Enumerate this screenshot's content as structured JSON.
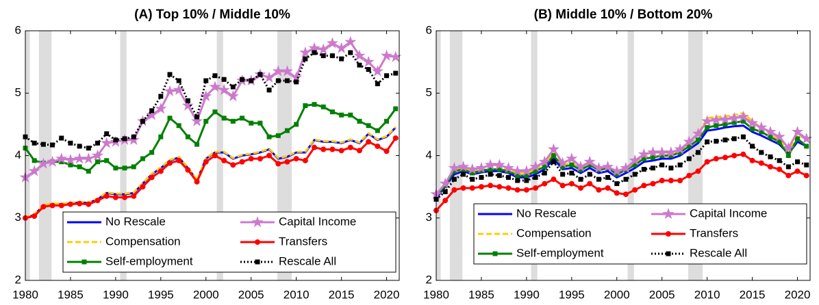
{
  "chart_data": [
    {
      "type": "line",
      "title": "(A) Top 10% / Middle 10%",
      "x": [
        1980,
        1981,
        1982,
        1983,
        1984,
        1985,
        1986,
        1987,
        1988,
        1989,
        1990,
        1991,
        1992,
        1993,
        1994,
        1995,
        1996,
        1997,
        1998,
        1999,
        2000,
        2001,
        2002,
        2003,
        2004,
        2005,
        2006,
        2007,
        2008,
        2009,
        2010,
        2011,
        2012,
        2013,
        2014,
        2015,
        2016,
        2017,
        2018,
        2019,
        2020,
        2021
      ],
      "xlim": [
        1980,
        2021.4
      ],
      "xticks": [
        1980,
        1985,
        1990,
        1995,
        2000,
        2005,
        2010,
        2015,
        2020
      ],
      "ylim": [
        2,
        6
      ],
      "yticks": [
        2,
        3,
        4,
        5,
        6
      ],
      "shaded": [
        [
          1980,
          1980.5
        ],
        [
          1981.5,
          1982.9
        ],
        [
          1990.5,
          1991.2
        ],
        [
          2001.2,
          2001.9
        ],
        [
          2007.9,
          2009.5
        ]
      ],
      "series": [
        {
          "name": "No Rescale",
          "color": "#0000ff",
          "style": "solid",
          "marker": "none",
          "values": [
            3.0,
            3.05,
            3.2,
            3.22,
            3.22,
            3.23,
            3.25,
            3.24,
            3.3,
            3.4,
            3.38,
            3.38,
            3.4,
            3.55,
            3.7,
            3.8,
            3.92,
            3.97,
            3.8,
            3.6,
            3.95,
            4.05,
            4.05,
            3.95,
            4.0,
            4.02,
            4.05,
            4.1,
            3.95,
            3.98,
            4.05,
            4.05,
            4.25,
            4.22,
            4.22,
            4.2,
            4.25,
            4.2,
            4.35,
            4.25,
            4.3,
            4.45
          ]
        },
        {
          "name": "Compensation",
          "color": "#ffcc00",
          "style": "dashed",
          "marker": "none",
          "values": [
            3.01,
            3.06,
            3.21,
            3.23,
            3.23,
            3.24,
            3.26,
            3.25,
            3.31,
            3.41,
            3.39,
            3.39,
            3.41,
            3.56,
            3.71,
            3.81,
            3.93,
            3.98,
            3.81,
            3.61,
            3.96,
            4.06,
            4.06,
            3.96,
            4.01,
            4.03,
            4.06,
            4.11,
            3.96,
            3.99,
            4.06,
            4.06,
            4.26,
            4.23,
            4.23,
            4.21,
            4.26,
            4.21,
            4.36,
            4.26,
            4.31,
            4.46
          ]
        },
        {
          "name": "Self-employment",
          "color": "#008000",
          "style": "solid",
          "marker": "square",
          "values": [
            4.12,
            3.92,
            3.88,
            3.9,
            3.9,
            3.85,
            3.82,
            3.75,
            3.9,
            3.92,
            3.8,
            3.8,
            3.82,
            3.95,
            4.05,
            4.3,
            4.6,
            4.48,
            4.3,
            4.18,
            4.55,
            4.7,
            4.6,
            4.55,
            4.6,
            4.52,
            4.52,
            4.3,
            4.32,
            4.4,
            4.5,
            4.8,
            4.82,
            4.78,
            4.7,
            4.65,
            4.65,
            4.55,
            4.48,
            4.4,
            4.55,
            4.75
          ]
        },
        {
          "name": "Capital Income",
          "color": "#cc79cc",
          "style": "solid",
          "marker": "star",
          "values": [
            3.65,
            3.75,
            3.87,
            3.9,
            3.95,
            3.93,
            3.95,
            3.95,
            4.0,
            4.2,
            4.22,
            4.25,
            4.25,
            4.55,
            4.65,
            4.75,
            5.03,
            5.05,
            4.8,
            4.55,
            4.95,
            5.1,
            5.05,
            4.95,
            5.2,
            5.2,
            5.3,
            5.25,
            5.35,
            5.35,
            5.25,
            5.65,
            5.72,
            5.7,
            5.8,
            5.72,
            5.82,
            5.6,
            5.5,
            5.35,
            5.6,
            5.58
          ]
        },
        {
          "name": "Transfers",
          "color": "#ff0000",
          "style": "solid",
          "marker": "circle",
          "values": [
            3.0,
            3.03,
            3.18,
            3.2,
            3.2,
            3.22,
            3.23,
            3.22,
            3.28,
            3.35,
            3.33,
            3.33,
            3.35,
            3.5,
            3.65,
            3.75,
            3.88,
            3.92,
            3.77,
            3.58,
            3.9,
            4.0,
            3.92,
            3.85,
            3.9,
            3.95,
            3.95,
            4.0,
            3.87,
            3.9,
            3.95,
            3.92,
            4.13,
            4.1,
            4.1,
            4.08,
            4.13,
            4.08,
            4.22,
            4.15,
            4.07,
            4.28
          ]
        },
        {
          "name": "Rescale All",
          "color": "#000000",
          "style": "dotted",
          "marker": "square",
          "values": [
            4.3,
            4.2,
            4.18,
            4.17,
            4.28,
            4.2,
            4.15,
            4.12,
            4.2,
            4.35,
            4.25,
            4.27,
            4.3,
            4.55,
            4.72,
            4.95,
            5.3,
            5.2,
            4.88,
            4.62,
            5.2,
            5.28,
            5.22,
            5.1,
            5.22,
            5.2,
            5.3,
            5.05,
            5.2,
            5.2,
            5.18,
            5.55,
            5.65,
            5.6,
            5.6,
            5.55,
            5.65,
            5.45,
            5.38,
            5.15,
            5.28,
            5.32
          ]
        }
      ]
    },
    {
      "type": "line",
      "title": "(B) Middle 10% / Bottom 20%",
      "x": [
        1980,
        1981,
        1982,
        1983,
        1984,
        1985,
        1986,
        1987,
        1988,
        1989,
        1990,
        1991,
        1992,
        1993,
        1994,
        1995,
        1996,
        1997,
        1998,
        1999,
        2000,
        2001,
        2002,
        2003,
        2004,
        2005,
        2006,
        2007,
        2008,
        2009,
        2010,
        2011,
        2012,
        2013,
        2014,
        2015,
        2016,
        2017,
        2018,
        2019,
        2020,
        2021
      ],
      "xlim": [
        1980,
        2021.4
      ],
      "xticks": [
        1980,
        1985,
        1990,
        1995,
        2000,
        2005,
        2010,
        2015,
        2020
      ],
      "ylim": [
        2,
        6
      ],
      "yticks": [
        2,
        3,
        4,
        5,
        6
      ],
      "shaded": [
        [
          1980,
          1980.5
        ],
        [
          1981.5,
          1982.9
        ],
        [
          1990.5,
          1991.2
        ],
        [
          2001.2,
          2001.9
        ],
        [
          2007.9,
          2009.5
        ]
      ],
      "series": [
        {
          "name": "No Rescale",
          "color": "#0000ff",
          "style": "solid",
          "marker": "none",
          "values": [
            3.32,
            3.5,
            3.7,
            3.75,
            3.7,
            3.73,
            3.75,
            3.75,
            3.72,
            3.65,
            3.65,
            3.7,
            3.78,
            3.95,
            3.78,
            3.8,
            3.72,
            3.8,
            3.72,
            3.75,
            3.65,
            3.72,
            3.8,
            3.9,
            3.92,
            3.95,
            3.95,
            4.0,
            4.1,
            4.2,
            4.4,
            4.42,
            4.45,
            4.47,
            4.48,
            4.38,
            4.32,
            4.25,
            4.18,
            4.03,
            4.22,
            4.15
          ]
        },
        {
          "name": "Compensation",
          "color": "#ffcc00",
          "style": "dashed",
          "marker": "none",
          "values": [
            3.38,
            3.55,
            3.78,
            3.8,
            3.75,
            3.8,
            3.82,
            3.82,
            3.78,
            3.72,
            3.72,
            3.78,
            3.85,
            4.05,
            3.85,
            3.88,
            3.8,
            3.88,
            3.8,
            3.82,
            3.72,
            3.8,
            3.9,
            3.98,
            4.0,
            4.02,
            4.02,
            4.08,
            4.22,
            4.35,
            4.6,
            4.62,
            4.63,
            4.65,
            4.68,
            4.55,
            4.45,
            4.35,
            4.25,
            4.08,
            4.32,
            4.28
          ]
        },
        {
          "name": "Self-employment",
          "color": "#008000",
          "style": "solid",
          "marker": "square",
          "values": [
            3.35,
            3.52,
            3.75,
            3.78,
            3.72,
            3.76,
            3.78,
            3.78,
            3.75,
            3.68,
            3.68,
            3.75,
            3.82,
            4.0,
            3.82,
            3.85,
            3.77,
            3.85,
            3.77,
            3.8,
            3.7,
            3.77,
            3.85,
            3.95,
            3.97,
            4.0,
            4.0,
            4.05,
            4.15,
            4.25,
            4.45,
            4.48,
            4.5,
            4.53,
            4.55,
            4.43,
            4.38,
            4.3,
            4.22,
            4.0,
            4.27,
            4.15
          ]
        },
        {
          "name": "Capital Income",
          "color": "#cc79cc",
          "style": "solid",
          "marker": "star",
          "values": [
            3.38,
            3.55,
            3.8,
            3.82,
            3.78,
            3.8,
            3.85,
            3.85,
            3.8,
            3.75,
            3.75,
            3.82,
            3.9,
            4.1,
            3.88,
            3.95,
            3.82,
            3.9,
            3.8,
            3.82,
            3.75,
            3.8,
            3.92,
            4.02,
            4.05,
            4.05,
            4.05,
            4.1,
            4.22,
            4.35,
            4.55,
            4.57,
            4.58,
            4.6,
            4.62,
            4.52,
            4.45,
            4.38,
            4.3,
            4.12,
            4.38,
            4.27
          ]
        },
        {
          "name": "Transfers",
          "color": "#ff0000",
          "style": "solid",
          "marker": "circle",
          "values": [
            3.12,
            3.28,
            3.45,
            3.48,
            3.48,
            3.5,
            3.52,
            3.5,
            3.48,
            3.45,
            3.45,
            3.48,
            3.55,
            3.62,
            3.52,
            3.55,
            3.48,
            3.55,
            3.45,
            3.48,
            3.4,
            3.38,
            3.45,
            3.52,
            3.55,
            3.6,
            3.6,
            3.6,
            3.68,
            3.75,
            3.9,
            3.95,
            3.97,
            4.0,
            4.02,
            3.92,
            3.88,
            3.82,
            3.78,
            3.68,
            3.75,
            3.68
          ]
        },
        {
          "name": "Rescale All",
          "color": "#000000",
          "style": "dotted",
          "marker": "square",
          "values": [
            3.3,
            3.42,
            3.62,
            3.7,
            3.62,
            3.65,
            3.7,
            3.68,
            3.65,
            3.6,
            3.6,
            3.65,
            3.72,
            3.9,
            3.7,
            3.72,
            3.62,
            3.7,
            3.62,
            3.65,
            3.55,
            3.62,
            3.7,
            3.78,
            3.8,
            3.85,
            3.8,
            3.85,
            3.95,
            4.05,
            4.22,
            4.23,
            4.25,
            4.27,
            4.3,
            4.15,
            4.05,
            3.98,
            3.92,
            3.82,
            3.9,
            3.85
          ]
        }
      ]
    }
  ]
}
